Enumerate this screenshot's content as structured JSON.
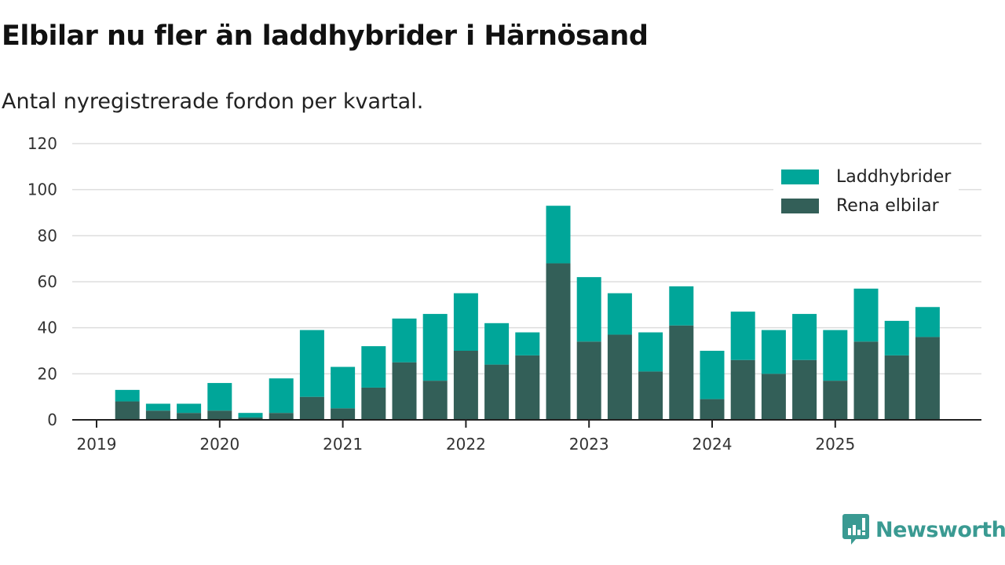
{
  "title": "Elbilar nu fler än laddhybrider i Härnösand",
  "subtitle": "Antal nyregistrerade fordon per kvartal.",
  "brand": "Newsworthy",
  "colors": {
    "laddhybrider": "#00a699",
    "elbilar": "#335f58",
    "brand": "#3a9a92"
  },
  "chart_data": {
    "type": "bar",
    "stacked": true,
    "title": "Elbilar nu fler än laddhybrider i Härnösand",
    "subtitle": "Antal nyregistrerade fordon per kvartal.",
    "xlabel": "",
    "ylabel": "",
    "ylim": [
      0,
      120
    ],
    "yticks": [
      "0",
      "20",
      "40",
      "60",
      "80",
      "100",
      "120"
    ],
    "xticks": [
      "2019",
      "2020",
      "2021",
      "2022",
      "2023",
      "2024",
      "2025"
    ],
    "legend_position": "top-right",
    "categories": [
      "2019 Q2",
      "2019 Q3",
      "2019 Q4",
      "2020 Q1",
      "2020 Q2",
      "2020 Q3",
      "2020 Q4",
      "2021 Q1",
      "2021 Q2",
      "2021 Q3",
      "2021 Q4",
      "2022 Q1",
      "2022 Q2",
      "2022 Q3",
      "2022 Q4",
      "2023 Q1",
      "2023 Q2",
      "2023 Q3",
      "2023 Q4",
      "2024 Q1",
      "2024 Q2",
      "2024 Q3",
      "2024 Q4",
      "2025 Q1",
      "2025 Q2",
      "2025 Q3",
      "2025 Q4"
    ],
    "series": [
      {
        "name": "Rena elbilar",
        "values": [
          8,
          4,
          3,
          4,
          1,
          3,
          10,
          5,
          14,
          25,
          17,
          30,
          24,
          28,
          68,
          34,
          37,
          21,
          41,
          9,
          26,
          20,
          26,
          17,
          34,
          28,
          36
        ]
      },
      {
        "name": "Laddhybrider",
        "values": [
          5,
          3,
          4,
          12,
          2,
          15,
          29,
          18,
          18,
          19,
          29,
          25,
          18,
          10,
          25,
          28,
          18,
          17,
          17,
          21,
          21,
          19,
          20,
          22,
          23,
          15,
          13
        ]
      }
    ]
  }
}
